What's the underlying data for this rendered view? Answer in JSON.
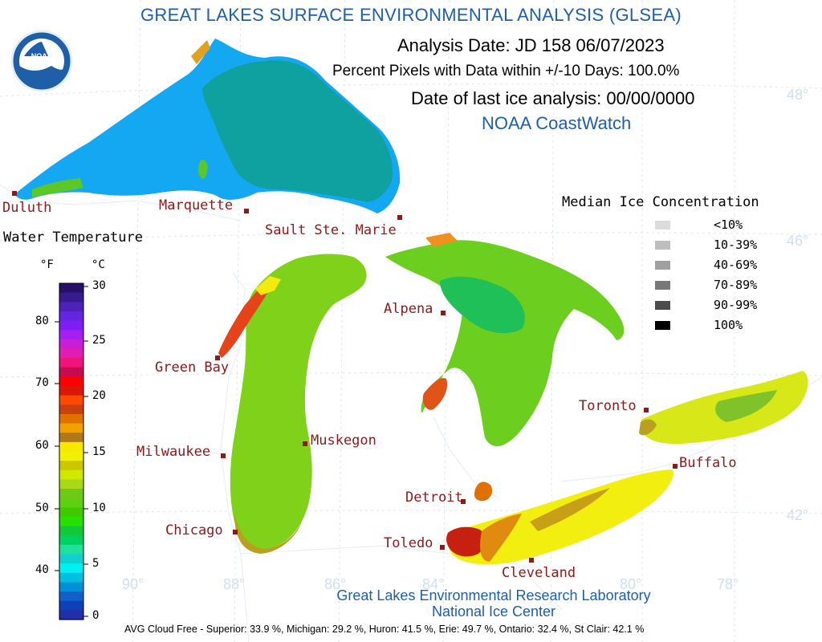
{
  "header": {
    "title": "GREAT LAKES SURFACE ENVIRONMENTAL ANALYSIS (GLSEA)",
    "analysis_date": "Analysis Date:  JD 158 06/07/2023",
    "percent_pixels": "Percent Pixels with Data within +/-10 Days: 100.0%",
    "last_ice": "Date of last ice analysis: 00/00/0000",
    "coastwatch": "NOAA CoastWatch"
  },
  "logo": {
    "text": "NOAA",
    "icon": "noaa-logo"
  },
  "colors": {
    "superior": "#15a8f2",
    "superior_warm": "#0fa0a0",
    "michigan": "#7fd11a",
    "huron": "#6ccf20",
    "erie": "#f2ef10",
    "ontario": "#d8e718",
    "city_marker": "#8b1a1a",
    "title_blue": "#1f5fa8"
  },
  "cities": [
    {
      "name": "Duluth"
    },
    {
      "name": "Marquette"
    },
    {
      "name": "Sault Ste. Marie"
    },
    {
      "name": "Alpena"
    },
    {
      "name": "Green Bay"
    },
    {
      "name": "Muskegon"
    },
    {
      "name": "Milwaukee"
    },
    {
      "name": "Toronto"
    },
    {
      "name": "Buffalo"
    },
    {
      "name": "Detroit"
    },
    {
      "name": "Chicago"
    },
    {
      "name": "Toledo"
    },
    {
      "name": "Cleveland"
    }
  ],
  "grid_labels": {
    "lat_48": "48°",
    "lat_46": "46°",
    "lat_42": "42°",
    "lon_90": "90°",
    "lon_88": "88°",
    "lon_86": "86°",
    "lon_84": "84°",
    "lon_80": "80°",
    "lon_78": "78°"
  },
  "water_temperature_legend": {
    "title": "Water Temperature",
    "unit_f": "°F",
    "unit_c": "°C",
    "f_ticks": [
      "80",
      "70",
      "60",
      "50",
      "40"
    ],
    "c_ticks": [
      "30",
      "25",
      "20",
      "15",
      "10",
      "5",
      "0"
    ],
    "colors_top_to_bottom": [
      "#27106a",
      "#371a8e",
      "#4c22b8",
      "#6226e0",
      "#7f1df5",
      "#a41ff0",
      "#c81fd6",
      "#e21cae",
      "#f0147a",
      "#c80a50",
      "#ff0000",
      "#d81808",
      "#ff4800",
      "#c84010",
      "#e07000",
      "#f0a000",
      "#b07818",
      "#f8e800",
      "#f0f000",
      "#c8c800",
      "#d0e800",
      "#a8d818",
      "#70c818",
      "#5ed010",
      "#40c800",
      "#28e000",
      "#10c838",
      "#00d060",
      "#20e0a0",
      "#10d0d0",
      "#00f0f0",
      "#00c0e0",
      "#0090d8",
      "#1060c8",
      "#1040b8",
      "#2030a8"
    ]
  },
  "ice_legend": {
    "title": "Median Ice Concentration",
    "items": [
      {
        "label": "<10%",
        "color": "#dcdcdc"
      },
      {
        "label": "10-39%",
        "color": "#bebebe"
      },
      {
        "label": "40-69%",
        "color": "#a0a0a0"
      },
      {
        "label": "70-89%",
        "color": "#787878"
      },
      {
        "label": "90-99%",
        "color": "#4c4c4c"
      },
      {
        "label": "100%",
        "color": "#000000"
      }
    ]
  },
  "footer": {
    "lab": "Great Lakes Environmental Research Laboratory",
    "center": "National Ice Center",
    "cloud_free": "AVG Cloud Free - Superior:  33.9 %, Michigan:  29.2 %, Huron:  41.5 %, Erie: 49.7 %, Ontario: 32.4 %, St Clair: 42.1 %"
  }
}
